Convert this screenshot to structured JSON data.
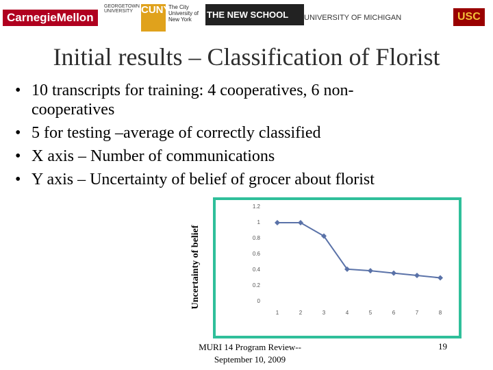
{
  "header": {
    "logos": [
      "CarnegieMellon",
      "GEORGETOWN UNIVERSITY",
      "CUNY",
      "The City University of New York",
      "THE NEW SCHOOL",
      "UNIVERSITY OF MICHIGAN",
      "USC"
    ]
  },
  "title": "Initial results – Classification of Florist",
  "bullets": [
    "10 transcripts for training: 4 cooperatives, 6 non-cooperatives",
    "5 for testing –average of correctly classified",
    "X axis – Number of communications",
    "Y axis – Uncertainty of belief of grocer about florist"
  ],
  "footer": {
    "text": "MURI 14 Program Review-- September 10, 2009",
    "page": "19"
  },
  "chart_data": {
    "type": "line",
    "y_label": "Uncertainty of belief",
    "categories": [
      "1",
      "2",
      "3",
      "4",
      "5",
      "6",
      "7",
      "8"
    ],
    "series": [
      {
        "name": "Uncertainty",
        "color": "#5a72a8",
        "values": [
          1,
          1,
          0.83,
          0.41,
          0.39,
          0.36,
          0.33,
          0.3
        ]
      }
    ],
    "ylim": [
      0,
      1.2
    ],
    "yticks": [
      0,
      0.2,
      0.4,
      0.6,
      0.8,
      1,
      1.2
    ],
    "grid": false,
    "frame_color": "#2fbf9a"
  }
}
